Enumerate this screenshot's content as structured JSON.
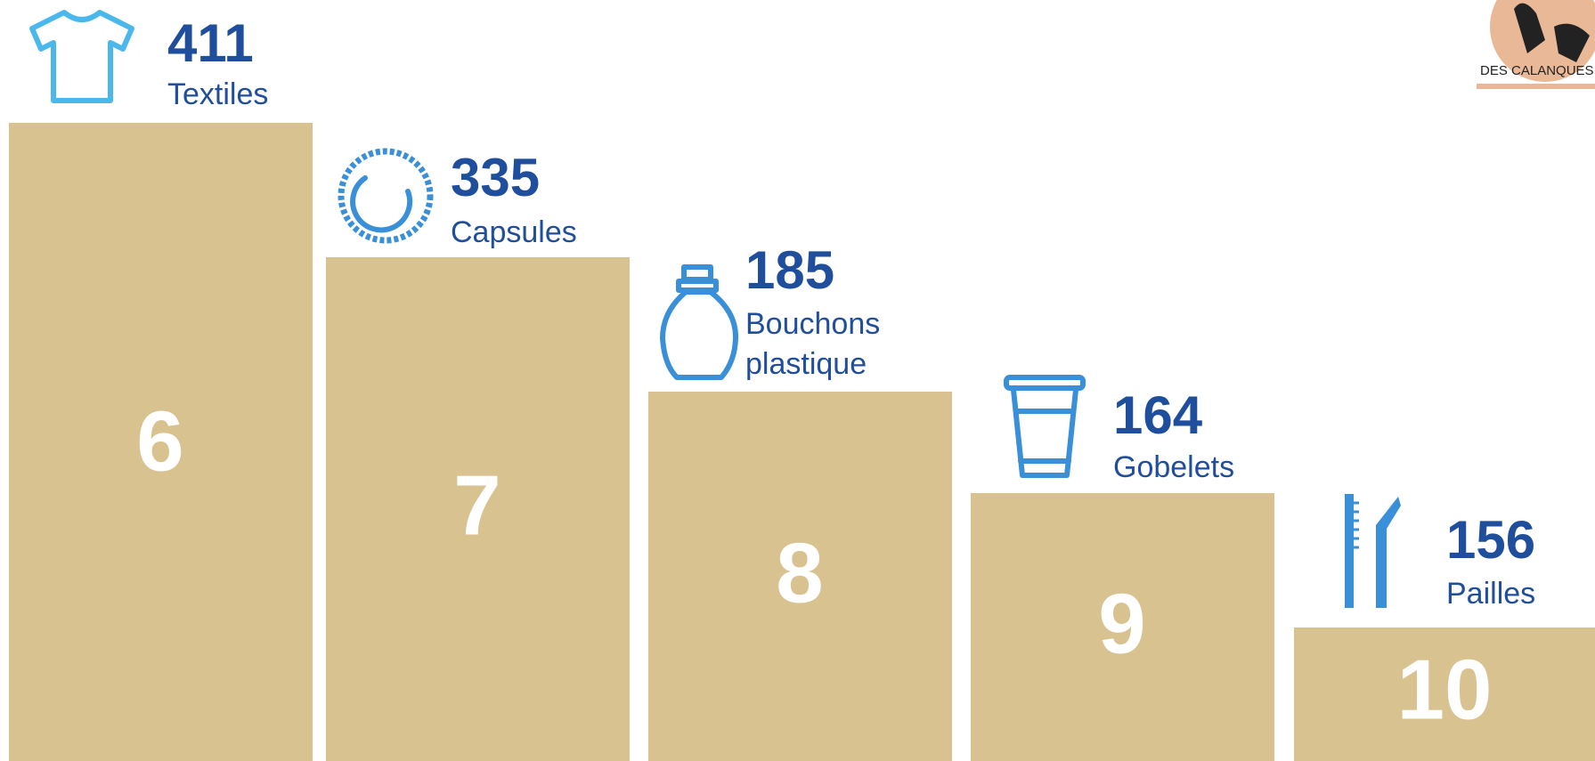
{
  "items": [
    {
      "rank": "6",
      "count": "411",
      "label": [
        "Textiles"
      ]
    },
    {
      "rank": "7",
      "count": "335",
      "label": [
        "Capsules"
      ]
    },
    {
      "rank": "8",
      "count": "185",
      "label": [
        "Bouchons",
        "plastique"
      ]
    },
    {
      "rank": "9",
      "count": "164",
      "label": [
        "Gobelets"
      ]
    },
    {
      "rank": "10",
      "count": "156",
      "label": [
        "Pailles"
      ]
    }
  ],
  "logo": {
    "text": "DES CALANQUES PRO"
  }
}
